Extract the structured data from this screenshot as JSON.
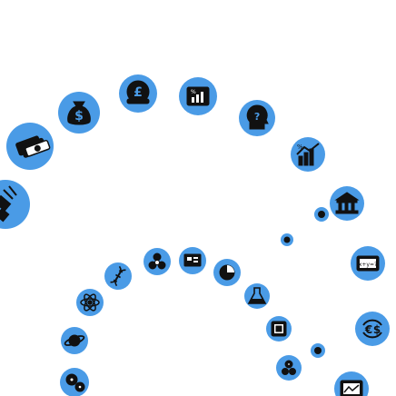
{
  "palette": {
    "accent": "#4a9be6",
    "glyph": "#111111",
    "background": "#ffffff"
  },
  "outer_ring_icons": [
    "satellite-icon",
    "cash-stack-icon",
    "money-bag-icon",
    "pound-coin-icon",
    "percentage-chart-icon",
    "head-idea-icon",
    "growth-chart-icon",
    "bank-icon",
    "formula-screen-icon",
    "currency-exchange-icon",
    "line-chart-icon"
  ],
  "inner_ring_icons": [
    "gears-icon",
    "planet-icon",
    "atom-icon",
    "dna-icon",
    "biohazard-icon",
    "circuit-board-icon",
    "pie-icon",
    "flask-icon",
    "microchip-icon",
    "cogs-cluster-icon"
  ],
  "small_dots": [
    "dot-icon-1",
    "dot-icon-2",
    "dot-icon-3"
  ]
}
